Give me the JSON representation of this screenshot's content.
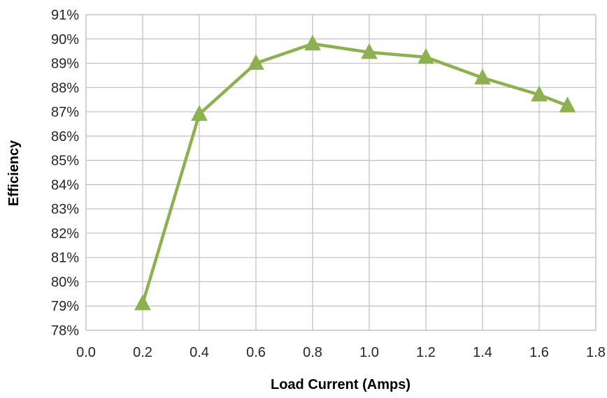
{
  "chart_data": {
    "type": "line",
    "title": "",
    "xlabel": "Load Current (Amps)",
    "ylabel": "Efficiency",
    "xlim": [
      0.0,
      1.8
    ],
    "ylim": [
      78,
      91
    ],
    "x_ticks": [
      "0.0",
      "0.2",
      "0.4",
      "0.6",
      "0.8",
      "1.0",
      "1.2",
      "1.4",
      "1.6",
      "1.8"
    ],
    "y_ticks": [
      "78%",
      "79%",
      "80%",
      "81%",
      "82%",
      "83%",
      "84%",
      "85%",
      "86%",
      "87%",
      "88%",
      "89%",
      "90%",
      "91%"
    ],
    "grid": true,
    "legend": "none",
    "series": [
      {
        "color": "#8db151",
        "marker": "triangle",
        "x": [
          0.2,
          0.4,
          0.6,
          0.8,
          1.0,
          1.2,
          1.4,
          1.6,
          1.7
        ],
        "y": [
          79.1,
          86.9,
          89.0,
          89.8,
          89.45,
          89.25,
          88.4,
          87.7,
          87.25
        ]
      }
    ]
  }
}
